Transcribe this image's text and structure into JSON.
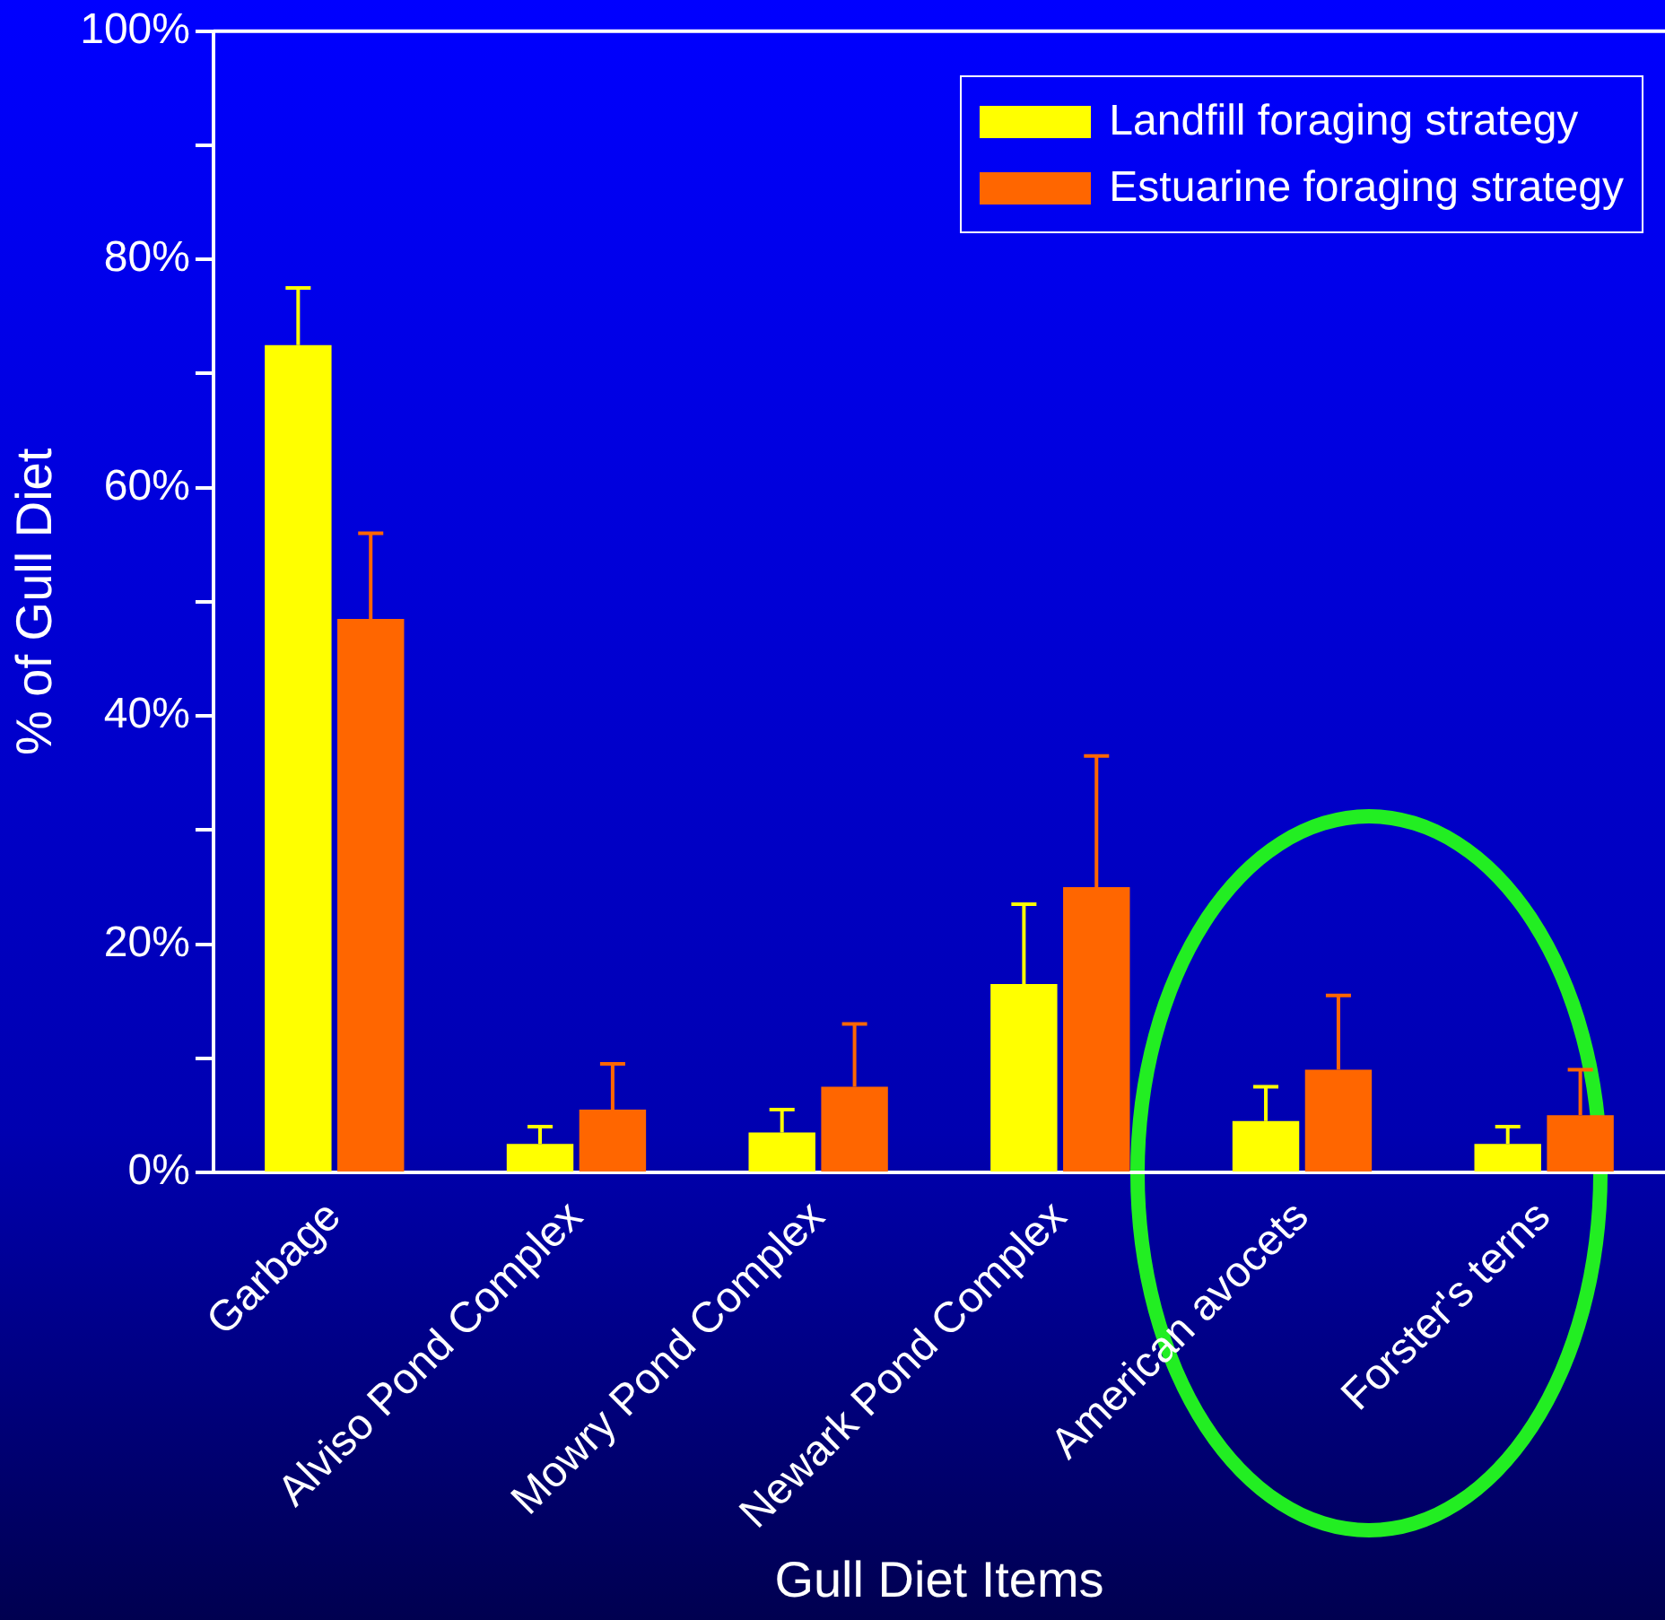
{
  "chart_data": {
    "type": "bar",
    "xlabel": "Gull Diet Items",
    "ylabel": "% of Gull Diet",
    "categories": [
      "Garbage",
      "Alviso Pond Complex",
      "Mowry Pond Complex",
      "Newark Pond Complex",
      "American avocets",
      "Forster's terns"
    ],
    "series": [
      {
        "name": "Landfill foraging strategy",
        "color": "#ffff00",
        "values": [
          72.5,
          2.5,
          3.5,
          16.5,
          4.5,
          2.5
        ],
        "errors": [
          [
            72.5,
            77.5
          ],
          [
            2.5,
            4
          ],
          [
            3.5,
            5.5
          ],
          [
            16.5,
            23.5
          ],
          [
            4.5,
            7.5
          ],
          [
            2.5,
            4
          ]
        ]
      },
      {
        "name": "Estuarine foraging strategy",
        "color": "#ff6600",
        "values": [
          48.5,
          5.5,
          7.5,
          25,
          9,
          5
        ],
        "errors": [
          [
            48.5,
            56
          ],
          [
            5.5,
            9.5
          ],
          [
            7.5,
            13
          ],
          [
            25,
            36.5
          ],
          [
            9,
            15.5
          ],
          [
            5,
            9
          ]
        ]
      }
    ],
    "ylim": [
      0,
      100
    ],
    "yticks": [
      {
        "value": 0,
        "label": "0%"
      },
      {
        "value": 10,
        "label": null
      },
      {
        "value": 20,
        "label": "20%"
      },
      {
        "value": 30,
        "label": null
      },
      {
        "value": 40,
        "label": "40%"
      },
      {
        "value": 50,
        "label": null
      },
      {
        "value": 60,
        "label": "60%"
      },
      {
        "value": 70,
        "label": null
      },
      {
        "value": 80,
        "label": "80%"
      },
      {
        "value": 90,
        "label": null
      },
      {
        "value": 100,
        "label": "100%"
      }
    ],
    "grid": false,
    "legend": "top right"
  }
}
